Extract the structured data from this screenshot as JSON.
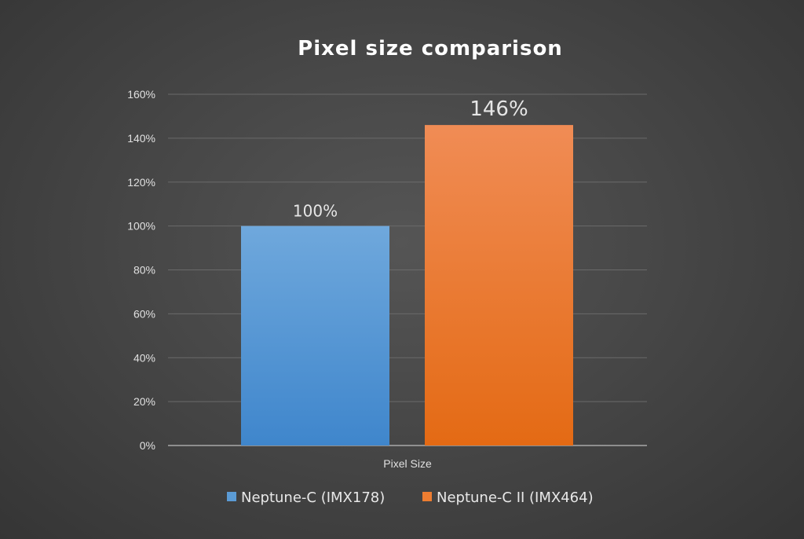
{
  "chart_data": {
    "type": "bar",
    "title": "Pixel size comparison",
    "categories": [
      "Pixel Size"
    ],
    "series": [
      {
        "name": "Neptune-C (IMX178)",
        "values": [
          100
        ],
        "color": "#5b9bd5",
        "data_label": "100%"
      },
      {
        "name": "Neptune-C II (IMX464)",
        "values": [
          146
        ],
        "color": "#ed7d31",
        "data_label": "146%"
      }
    ],
    "y_ticks": [
      "0%",
      "20%",
      "40%",
      "60%",
      "80%",
      "100%",
      "120%",
      "140%",
      "160%"
    ],
    "ylim": [
      0,
      160
    ],
    "xlabel": "",
    "ylabel": "",
    "grid": true,
    "legend_position": "bottom"
  }
}
